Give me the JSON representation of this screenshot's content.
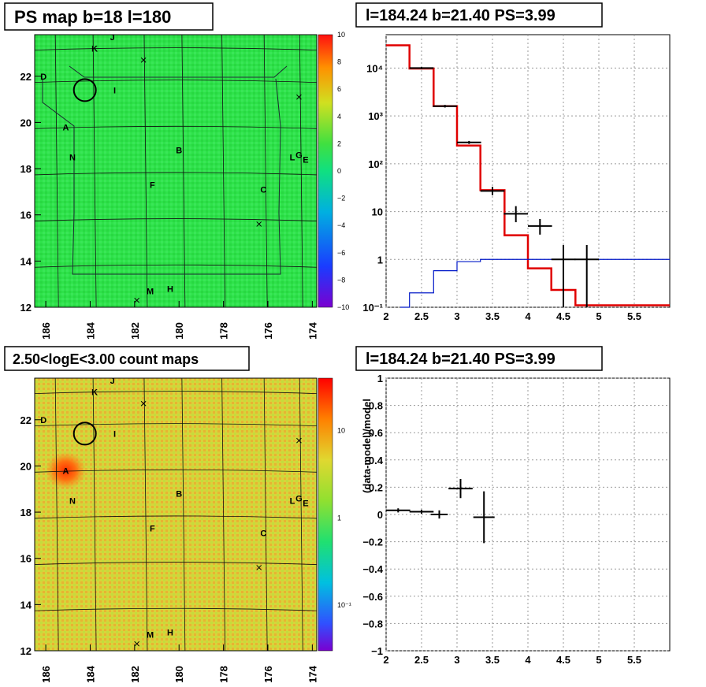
{
  "colors": {
    "ps_map_bg": "#2ee24a",
    "count_map_bg": "#d9d33a",
    "model_line": "#e00000",
    "background_line": "#0018c8",
    "data_points": "#000000",
    "grid": "#888888"
  },
  "panels": {
    "ps_map": {
      "title": "PS map b=18 l=180",
      "x_ticks": [
        "186",
        "184",
        "182",
        "180",
        "178",
        "176",
        "174"
      ],
      "y_ticks": [
        "22",
        "20",
        "18",
        "16",
        "14",
        "12"
      ],
      "colorbar_ticks": [
        "10",
        "8",
        "6",
        "4",
        "2",
        "0",
        "−2",
        "−4",
        "−6",
        "−8",
        "−10"
      ]
    },
    "count_map": {
      "title": "2.50<logE<3.00 count maps",
      "x_ticks": [
        "186",
        "184",
        "182",
        "180",
        "178",
        "176",
        "174"
      ],
      "y_ticks": [
        "22",
        "20",
        "18",
        "16",
        "14",
        "12"
      ],
      "colorbar_ticks": [
        "10",
        "1",
        "10⁻¹"
      ]
    },
    "spectrum": {
      "title": "l=184.24 b=21.40 PS=3.99"
    },
    "residual": {
      "title": "l=184.24 b=21.40 PS=3.99"
    }
  },
  "sources": [
    {
      "label": "A",
      "l": 185.1,
      "b": 19.8
    },
    {
      "label": "B",
      "l": 180.0,
      "b": 18.8
    },
    {
      "label": "C",
      "l": 176.2,
      "b": 17.1
    },
    {
      "label": "D",
      "l": 186.1,
      "b": 22.0
    },
    {
      "label": "E",
      "l": 174.3,
      "b": 18.4
    },
    {
      "label": "F",
      "l": 181.2,
      "b": 17.3
    },
    {
      "label": "G",
      "l": 174.6,
      "b": 18.6
    },
    {
      "label": "H",
      "l": 180.4,
      "b": 12.8
    },
    {
      "label": "I",
      "l": 182.9,
      "b": 21.4
    },
    {
      "label": "J",
      "l": 183.0,
      "b": 23.7
    },
    {
      "label": "K",
      "l": 183.8,
      "b": 23.2
    },
    {
      "label": "L",
      "l": 174.9,
      "b": 18.5
    },
    {
      "label": "M",
      "l": 181.3,
      "b": 12.7
    },
    {
      "label": "N",
      "l": 184.8,
      "b": 18.5
    }
  ],
  "crosses": [
    {
      "l": 181.6,
      "b": 22.7
    },
    {
      "l": 174.6,
      "b": 21.1
    },
    {
      "l": 176.4,
      "b": 15.6
    },
    {
      "l": 181.9,
      "b": 12.3
    }
  ],
  "circle": {
    "l": 184.24,
    "b": 21.4
  },
  "chart_data": [
    {
      "type": "heatmap",
      "title": "PS map b=18 l=180",
      "xlabel": "",
      "ylabel": "",
      "xlim": [
        186.5,
        173.8
      ],
      "ylim": [
        12,
        23.8
      ],
      "colorbar_range": [
        -10,
        10
      ],
      "grid": true
    },
    {
      "type": "heatmap",
      "title": "2.50<logE<3.00 count maps",
      "xlabel": "",
      "ylabel": "",
      "xlim": [
        186.5,
        173.8
      ],
      "ylim": [
        12,
        23.8
      ],
      "colorbar_scale": "log",
      "colorbar_range": [
        0.03,
        40
      ],
      "grid": true
    },
    {
      "type": "line",
      "title": "l=184.24 b=21.40 PS=3.99",
      "xlabel": "",
      "ylabel": "",
      "xlim": [
        2,
        6
      ],
      "ylim": [
        0.1,
        50000
      ],
      "yscale": "log",
      "x_ticks": [
        "2",
        "2.5",
        "3",
        "3.5",
        "4",
        "4.5",
        "5",
        "5.5"
      ],
      "y_ticks": [
        "10⁻¹",
        "1",
        "10",
        "10²",
        "10³",
        "10⁴"
      ],
      "grid": true,
      "series": [
        {
          "name": "",
          "style": "step",
          "edges": [
            2.0,
            2.33,
            2.67,
            3.0,
            3.33,
            3.67,
            4.0,
            4.33,
            4.67,
            5.0,
            6.0
          ],
          "values": [
            30000,
            9800,
            1600,
            240,
            28,
            3.2,
            0.65,
            0.23,
            0.11,
            0.11
          ]
        },
        {
          "name": "",
          "style": "step",
          "edges": [
            2.2,
            2.33,
            2.67,
            3.0,
            3.33,
            3.67,
            4.0,
            4.33,
            4.67,
            5.0,
            6.0
          ],
          "values": [
            0.1,
            0.2,
            0.58,
            0.9,
            1.0,
            1.0,
            1.0,
            1.0,
            1.0,
            1.0
          ]
        },
        {
          "name": "",
          "style": "errorbar",
          "points": [
            {
              "x": 2.5,
              "y": 10000,
              "xerr": 0.17,
              "ylo": 9500,
              "yhi": 10500
            },
            {
              "x": 2.83,
              "y": 1600,
              "xerr": 0.17,
              "ylo": 1500,
              "yhi": 1700
            },
            {
              "x": 3.17,
              "y": 280,
              "xerr": 0.17,
              "ylo": 260,
              "yhi": 300
            },
            {
              "x": 3.5,
              "y": 27,
              "xerr": 0.17,
              "ylo": 22,
              "yhi": 33
            },
            {
              "x": 3.83,
              "y": 9,
              "xerr": 0.17,
              "ylo": 6,
              "yhi": 13
            },
            {
              "x": 4.17,
              "y": 5,
              "xerr": 0.17,
              "ylo": 3.3,
              "yhi": 7
            },
            {
              "x": 4.5,
              "y": 1.0,
              "xerr": 0.17,
              "ylo": 0.1,
              "yhi": 2.0
            },
            {
              "x": 4.83,
              "y": 1.0,
              "xerr": 0.17,
              "ylo": 0.1,
              "yhi": 2.0
            }
          ]
        }
      ]
    },
    {
      "type": "scatter",
      "title": "l=184.24 b=21.40 PS=3.99",
      "xlabel": "",
      "ylabel": "(data-model)/model",
      "xlim": [
        2,
        6
      ],
      "ylim": [
        -1,
        1
      ],
      "x_ticks": [
        "2",
        "2.5",
        "3",
        "3.5",
        "4",
        "4.5",
        "5",
        "5.5"
      ],
      "y_ticks": [
        "1",
        "0.8",
        "0.6",
        "0.4",
        "0.2",
        "0",
        "−0.2",
        "−0.4",
        "−0.6",
        "−0.8",
        "−1"
      ],
      "grid": true,
      "series": [
        {
          "name": "",
          "points": [
            {
              "x": 2.17,
              "y": 0.03,
              "xerr": 0.17,
              "yerr": 0.015
            },
            {
              "x": 2.5,
              "y": 0.02,
              "xerr": 0.17,
              "yerr": 0.015
            },
            {
              "x": 2.75,
              "y": 0.0,
              "xerr": 0.12,
              "yerr": 0.03
            },
            {
              "x": 3.05,
              "y": 0.19,
              "xerr": 0.17,
              "yerr": 0.07
            },
            {
              "x": 3.38,
              "y": -0.02,
              "xerr": 0.15,
              "yerr": 0.19
            }
          ]
        }
      ]
    }
  ]
}
